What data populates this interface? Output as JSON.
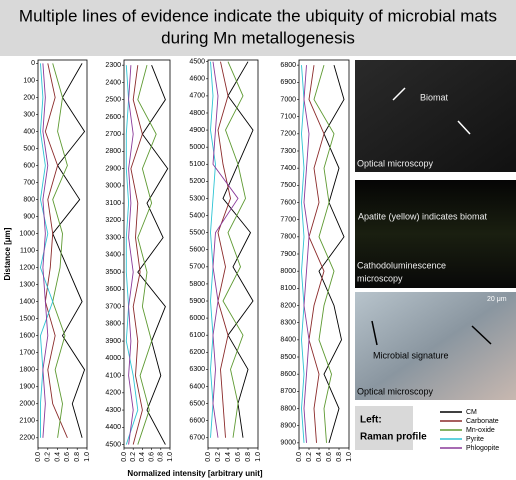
{
  "title": [
    "Multiple lines of evidence indicate the ubiquity of microbial mats",
    "during Mn metallogenesis"
  ],
  "x_label": "Normalized intensity [arbitrary unit]",
  "chart_data": [
    {
      "type": "line",
      "y_label": "Distance [μm]",
      "y": [
        0,
        200,
        400,
        600,
        800,
        1000,
        1200,
        1400,
        1600,
        1800,
        2000,
        2200
      ],
      "ylim": [
        -20,
        2260
      ],
      "yticks": [
        0,
        100,
        200,
        300,
        400,
        500,
        600,
        700,
        800,
        900,
        1000,
        1100,
        1200,
        1300,
        1400,
        1500,
        1600,
        1700,
        1800,
        1900,
        2000,
        2100,
        2200
      ],
      "xlim": [
        0,
        1
      ],
      "xticks": [
        {
          "value": 0,
          "label": "0.0"
        },
        {
          "value": 0.2,
          "label": "0.2"
        },
        {
          "value": 0.4,
          "label": "0.4"
        },
        {
          "value": 0.6,
          "label": "0.6"
        },
        {
          "value": 0.8,
          "label": "0.8"
        },
        {
          "value": 1,
          "label": "1.0"
        }
      ],
      "series": [
        {
          "name": "CM",
          "color": "#000000",
          "values": [
            0.9,
            0.5,
            0.95,
            0.4,
            0.85,
            0.3,
            0.6,
            0.9,
            0.5,
            0.95,
            0.7,
            0.9
          ]
        },
        {
          "name": "Carbonate",
          "color": "#8b2a2a",
          "values": [
            0.2,
            0.35,
            0.15,
            0.4,
            0.2,
            0.3,
            0.25,
            0.15,
            0.35,
            0.2,
            0.3,
            0.6
          ]
        },
        {
          "name": "Mn-oxide",
          "color": "#5e9a32",
          "values": [
            0.3,
            0.5,
            0.4,
            0.6,
            0.3,
            0.5,
            0.45,
            0.3,
            0.55,
            0.35,
            0.5,
            0.4
          ]
        },
        {
          "name": "Pyrite",
          "color": "#2ec4d4",
          "values": [
            0.05,
            0.1,
            0.05,
            0.15,
            0.05,
            0.2,
            0.05,
            0.3,
            0.05,
            0.1,
            0.05,
            0.05
          ]
        },
        {
          "name": "Phlogopite",
          "color": "#8a3a9a",
          "values": [
            0.1,
            0.15,
            0.1,
            0.2,
            0.1,
            0.15,
            0.1,
            0.15,
            0.2,
            0.1,
            0.15,
            0.1
          ]
        }
      ]
    },
    {
      "type": "line",
      "y": [
        2300,
        2500,
        2700,
        2900,
        3100,
        3300,
        3500,
        3700,
        3900,
        4100,
        4300,
        4500
      ],
      "ylim": [
        2270,
        4520
      ],
      "yticks": [
        2300,
        2400,
        2500,
        2600,
        2700,
        2800,
        2900,
        3000,
        3100,
        3200,
        3300,
        3400,
        3500,
        3600,
        3700,
        3800,
        3900,
        4000,
        4100,
        4200,
        4300,
        4400,
        4500
      ],
      "xlim": [
        0,
        1
      ],
      "xticks": [
        {
          "value": 0,
          "label": "0.0"
        },
        {
          "value": 0.2,
          "label": "0.2"
        },
        {
          "value": 0.4,
          "label": "0.4"
        },
        {
          "value": 0.6,
          "label": "0.6"
        },
        {
          "value": 0.8,
          "label": "0.8"
        },
        {
          "value": 1,
          "label": "1.0"
        }
      ],
      "series": [
        {
          "name": "CM",
          "color": "#000000",
          "values": [
            0.6,
            0.9,
            0.4,
            0.95,
            0.5,
            0.85,
            0.3,
            0.9,
            0.6,
            0.8,
            0.5,
            0.9
          ]
        },
        {
          "name": "Carbonate",
          "color": "#8b2a2a",
          "values": [
            0.3,
            0.2,
            0.4,
            0.15,
            0.3,
            0.25,
            0.35,
            0.2,
            0.3,
            0.25,
            0.4,
            0.2
          ]
        },
        {
          "name": "Mn-oxide",
          "color": "#5e9a32",
          "values": [
            0.5,
            0.3,
            0.7,
            0.4,
            0.6,
            0.3,
            0.5,
            0.4,
            0.6,
            0.35,
            0.55,
            0.3
          ]
        },
        {
          "name": "Pyrite",
          "color": "#2ec4d4",
          "values": [
            0.05,
            0.1,
            0.05,
            0.05,
            0.1,
            0.05,
            0.05,
            0.1,
            0.05,
            0.2,
            0.3,
            0.05
          ]
        },
        {
          "name": "Phlogopite",
          "color": "#8a3a9a",
          "values": [
            0.15,
            0.1,
            0.2,
            0.1,
            0.15,
            0.1,
            0.2,
            0.1,
            0.15,
            0.1,
            0.2,
            0.1
          ]
        }
      ]
    },
    {
      "type": "line",
      "y": [
        4500,
        4700,
        4900,
        5100,
        5300,
        5500,
        5700,
        5900,
        6100,
        6300,
        6500,
        6700
      ],
      "ylim": [
        4490,
        6760
      ],
      "yticks": [
        4500,
        4600,
        4700,
        4800,
        4900,
        5000,
        5100,
        5200,
        5300,
        5400,
        5500,
        5600,
        5700,
        5800,
        5900,
        6000,
        6100,
        6200,
        6300,
        6400,
        6500,
        6600,
        6700
      ],
      "xlim": [
        0,
        1
      ],
      "xticks": [
        {
          "value": 0,
          "label": "0.0"
        },
        {
          "value": 0.2,
          "label": "0.2"
        },
        {
          "value": 0.4,
          "label": "0.4"
        },
        {
          "value": 0.6,
          "label": "0.6"
        },
        {
          "value": 0.8,
          "label": "0.8"
        },
        {
          "value": 1,
          "label": "1.0"
        }
      ],
      "series": [
        {
          "name": "CM",
          "color": "#000000",
          "values": [
            0.8,
            0.4,
            0.9,
            0.6,
            0.3,
            0.85,
            0.5,
            0.9,
            0.4,
            0.8,
            0.6,
            0.7
          ]
        },
        {
          "name": "Carbonate",
          "color": "#8b2a2a",
          "values": [
            0.25,
            0.4,
            0.2,
            0.3,
            0.45,
            0.2,
            0.35,
            0.2,
            0.4,
            0.25,
            0.3,
            0.35
          ]
        },
        {
          "name": "Mn-oxide",
          "color": "#5e9a32",
          "values": [
            0.4,
            0.7,
            0.35,
            0.6,
            0.75,
            0.4,
            0.65,
            0.3,
            0.7,
            0.45,
            0.6,
            0.5
          ]
        },
        {
          "name": "Pyrite",
          "color": "#2ec4d4",
          "values": [
            0.05,
            0.1,
            0.05,
            0.15,
            0.1,
            0.05,
            0.1,
            0.05,
            0.1,
            0.05,
            0.1,
            0.05
          ]
        },
        {
          "name": "Phlogopite",
          "color": "#8a3a9a",
          "values": [
            0.1,
            0.2,
            0.15,
            0.1,
            0.6,
            0.15,
            0.1,
            0.2,
            0.1,
            0.15,
            0.1,
            0.2
          ]
        }
      ]
    },
    {
      "type": "line",
      "y": [
        6800,
        7000,
        7200,
        7400,
        7600,
        7800,
        8000,
        8200,
        8400,
        8600,
        8800,
        9000
      ],
      "ylim": [
        6770,
        9030
      ],
      "yticks": [
        6800,
        6900,
        7000,
        7100,
        7200,
        7300,
        7400,
        7500,
        7600,
        7700,
        7800,
        7900,
        8000,
        8100,
        8200,
        8300,
        8400,
        8500,
        8600,
        8700,
        8800,
        8900,
        9000
      ],
      "xlim": [
        0,
        1
      ],
      "xticks": [
        {
          "value": 0,
          "label": "0.0"
        },
        {
          "value": 0.2,
          "label": "0.2"
        },
        {
          "value": 0.4,
          "label": "0.4"
        },
        {
          "value": 0.6,
          "label": "0.6"
        },
        {
          "value": 0.8,
          "label": "0.8"
        },
        {
          "value": 1,
          "label": "1.0"
        }
      ],
      "series": [
        {
          "name": "CM",
          "color": "#000000",
          "values": [
            0.7,
            0.9,
            0.5,
            0.8,
            0.6,
            0.9,
            0.4,
            0.7,
            0.85,
            0.5,
            0.8,
            0.6
          ]
        },
        {
          "name": "Carbonate",
          "color": "#8b2a2a",
          "values": [
            0.3,
            0.2,
            0.5,
            0.3,
            0.4,
            0.2,
            0.5,
            0.3,
            0.2,
            0.4,
            0.3,
            0.35
          ]
        },
        {
          "name": "Mn-oxide",
          "color": "#5e9a32",
          "values": [
            0.5,
            0.3,
            0.7,
            0.5,
            0.6,
            0.4,
            0.7,
            0.5,
            0.4,
            0.65,
            0.5,
            0.55
          ]
        },
        {
          "name": "Pyrite",
          "color": "#2ec4d4",
          "values": [
            0.05,
            0.1,
            0.05,
            0.1,
            0.05,
            0.1,
            0.05,
            0.1,
            0.05,
            0.1,
            0.05,
            0.1
          ]
        },
        {
          "name": "Phlogopite",
          "color": "#8a3a9a",
          "values": [
            0.15,
            0.1,
            0.2,
            0.15,
            0.1,
            0.2,
            0.15,
            0.1,
            0.2,
            0.15,
            0.1,
            0.15
          ]
        }
      ]
    }
  ],
  "images": [
    {
      "labels": [
        "Biomat"
      ],
      "caption": [
        "Optical microscopy"
      ]
    },
    {
      "labels": [
        "Apatite (yellow) indicates biomat"
      ],
      "caption": [
        "Cathodoluminescence",
        "microscopy"
      ]
    },
    {
      "labels": [
        "20 μm",
        "Microbial signature"
      ],
      "caption": [
        "Optical microscopy"
      ]
    }
  ],
  "note": [
    "Left:",
    "Raman profile"
  ]
}
